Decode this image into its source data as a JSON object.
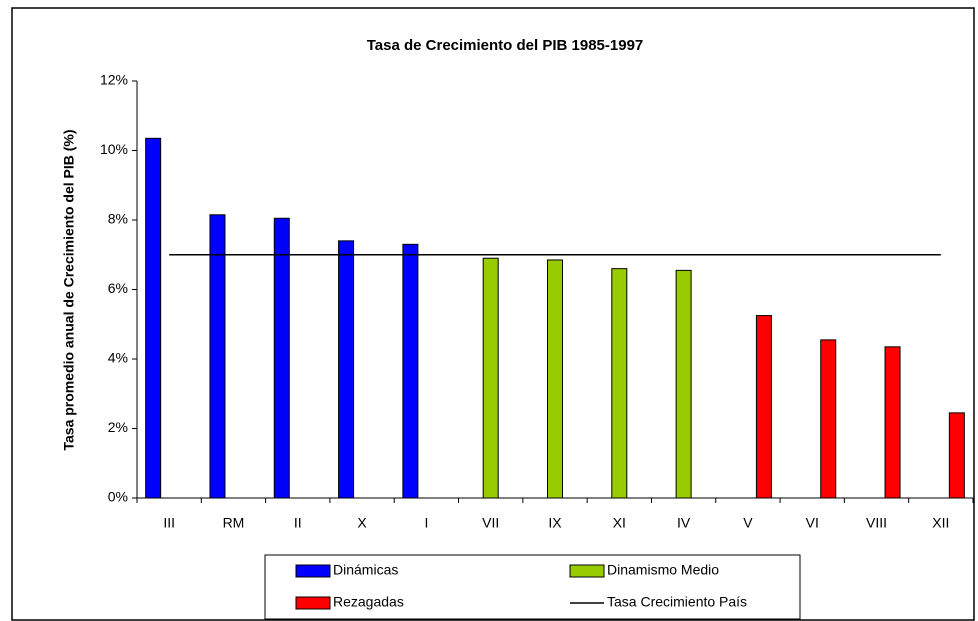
{
  "chart_data": {
    "type": "bar",
    "title": "Tasa de Crecimiento del PIB 1985-1997",
    "y_label": "Tasa promedio anual de Crecimiento del PIB (%)",
    "categories": [
      "III",
      "RM",
      "II",
      "X",
      "I",
      "VII",
      "IX",
      "XI",
      "IV",
      "V",
      "VI",
      "VIII",
      "XII"
    ],
    "series": [
      {
        "name": "Dinámicas",
        "type": "bar",
        "color": "#0000ff",
        "values": [
          10.35,
          8.15,
          8.05,
          7.4,
          7.3,
          null,
          null,
          null,
          null,
          null,
          null,
          null,
          null
        ]
      },
      {
        "name": "Dinamismo Medio",
        "type": "bar",
        "color": "#99cc00",
        "values": [
          null,
          null,
          null,
          null,
          null,
          6.9,
          6.85,
          6.6,
          6.55,
          null,
          null,
          null,
          null
        ]
      },
      {
        "name": "Rezagadas",
        "type": "bar",
        "color": "#ff0000",
        "values": [
          null,
          null,
          null,
          null,
          null,
          null,
          null,
          null,
          null,
          5.25,
          4.55,
          4.35,
          2.45
        ]
      },
      {
        "name": "Tasa Crecimiento País",
        "type": "line",
        "color": "#000000",
        "values": [
          7,
          7,
          7,
          7,
          7,
          7,
          7,
          7,
          7,
          7,
          7,
          7,
          7
        ]
      }
    ],
    "ylim": [
      0,
      12
    ],
    "yticks": [
      {
        "value": 0,
        "label": "0%"
      },
      {
        "value": 2,
        "label": "2%"
      },
      {
        "value": 4,
        "label": "4%"
      },
      {
        "value": 6,
        "label": "6%"
      },
      {
        "value": 8,
        "label": "8%"
      },
      {
        "value": 10,
        "label": "10%"
      },
      {
        "value": 12,
        "label": "12%"
      }
    ],
    "grid": false,
    "legend": "bottom"
  }
}
